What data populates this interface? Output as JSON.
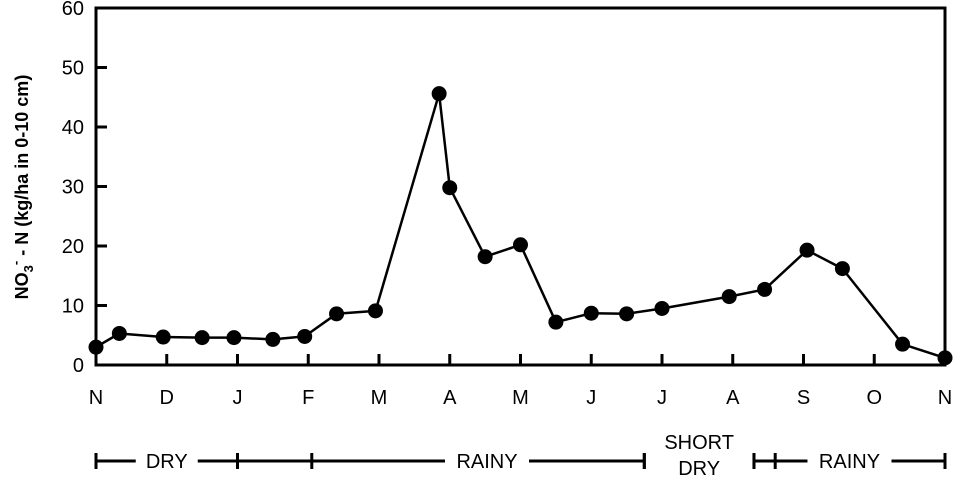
{
  "chart_data": {
    "type": "line",
    "title": "",
    "xlabel": "",
    "ylabel": "(kg/ha in 0-10 cm)",
    "ylabel_prefix": "NO",
    "ylabel_sub": "3",
    "ylabel_sup": "-",
    "ylabel_mid": " - N ",
    "ylim": [
      0,
      60
    ],
    "yticks": [
      "0",
      "10",
      "20",
      "30",
      "40",
      "50",
      "60"
    ],
    "xlim": [
      0,
      12
    ],
    "month_labels": [
      "N",
      "D",
      "J",
      "F",
      "M",
      "A",
      "M",
      "J",
      "J",
      "A",
      "S",
      "O",
      "N"
    ],
    "grid": false,
    "series": [
      {
        "name": "",
        "x": [
          0.0,
          0.33,
          0.95,
          1.5,
          1.95,
          2.5,
          2.95,
          3.4,
          3.95,
          4.85,
          5.0,
          5.5,
          6.0,
          6.5,
          7.0,
          7.5,
          8.0,
          8.95,
          9.45,
          10.05,
          10.55,
          11.4,
          12.0
        ],
        "y": [
          3.0,
          5.3,
          4.7,
          4.6,
          4.6,
          4.3,
          4.8,
          8.6,
          9.1,
          45.6,
          29.8,
          18.2,
          20.2,
          7.2,
          8.7,
          8.6,
          9.5,
          11.5,
          12.7,
          19.3,
          16.2,
          3.5,
          1.2
        ]
      }
    ],
    "seasons": [
      {
        "label": "DRY",
        "start": 0.0,
        "end": 2.0,
        "ticks": [
          0.0,
          2.0
        ]
      },
      {
        "label": "RAINY",
        "start": 2.0,
        "end": 7.75,
        "ticks": [
          2.0,
          3.05,
          7.75
        ]
      },
      {
        "label": "SHORT",
        "label2": "DRY",
        "start": 7.75,
        "end": 9.3,
        "ticks": [
          7.75,
          9.3
        ]
      },
      {
        "label": "RAINY",
        "start": 9.3,
        "end": 12.0,
        "ticks": [
          9.3,
          9.6,
          12.0
        ]
      }
    ]
  }
}
